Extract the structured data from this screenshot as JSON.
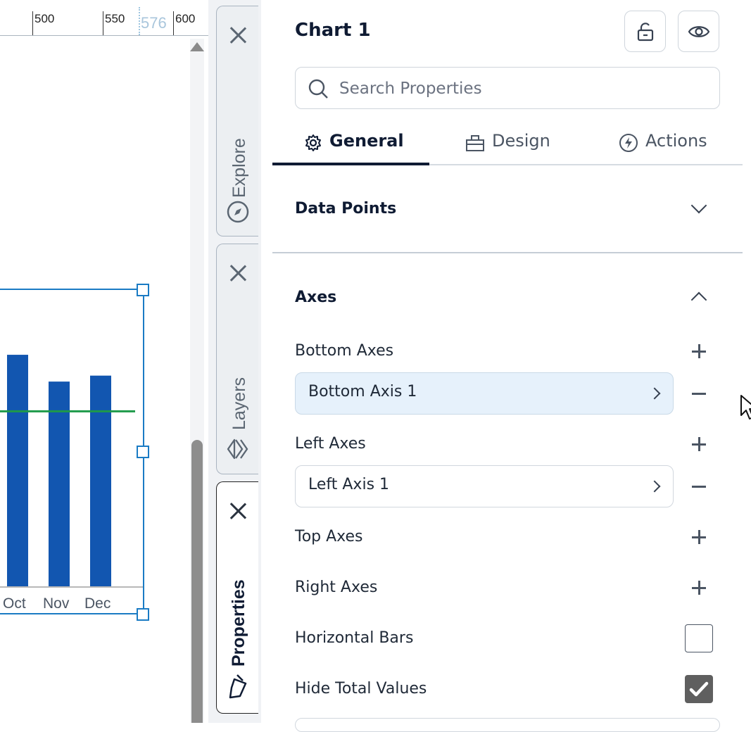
{
  "ruler": {
    "ticks": [
      "500",
      "550",
      "600"
    ],
    "guide_value": "576"
  },
  "chart_data": {
    "type": "bar",
    "categories": [
      "Oct",
      "Nov",
      "Dec"
    ],
    "series": [
      {
        "values": [
          78,
          69,
          71
        ]
      }
    ],
    "reference_line": 59,
    "ylim": [
      0,
      100
    ],
    "colors": {
      "bars": "#1256b0",
      "line": "#1e9a4a",
      "selection": "#1a7bc4"
    }
  },
  "side_tabs": {
    "explore": {
      "label": "Explore",
      "icon": "compass-icon"
    },
    "layers": {
      "label": "Layers",
      "icon": "layers-icon"
    },
    "properties": {
      "label": "Properties",
      "icon": "brush-icon"
    }
  },
  "panel": {
    "title": "Chart 1",
    "search": {
      "placeholder": "Search Properties",
      "value": ""
    },
    "tabs": [
      {
        "label": "General",
        "icon": "gear-icon",
        "active": true
      },
      {
        "label": "Design",
        "icon": "design-icon",
        "active": false
      },
      {
        "label": "Actions",
        "icon": "lightning-icon",
        "active": false
      }
    ],
    "sections": {
      "data_points": {
        "title": "Data Points",
        "expanded": false
      },
      "axes": {
        "title": "Axes",
        "expanded": true
      }
    },
    "axes": {
      "bottom_axes_label": "Bottom Axes",
      "bottom_axis_item": "Bottom Axis 1",
      "left_axes_label": "Left Axes",
      "left_axis_item": "Left Axis 1",
      "top_axes_label": "Top Axes",
      "right_axes_label": "Right Axes",
      "horizontal_bars_label": "Horizontal Bars",
      "horizontal_bars_checked": false,
      "hide_total_values_label": "Hide Total Values",
      "hide_total_values_checked": true
    }
  }
}
